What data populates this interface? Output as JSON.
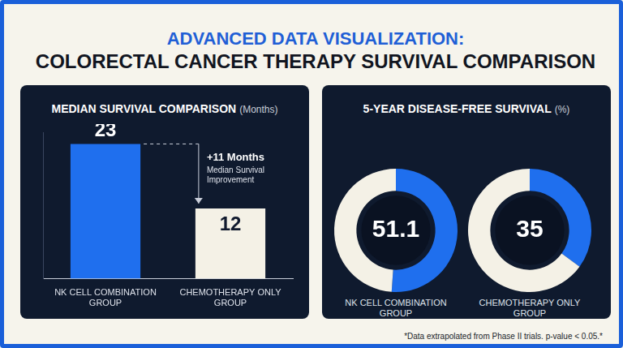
{
  "header": {
    "title": "ADVANCED DATA VISUALIZATION:",
    "subtitle": "COLORECTAL CANCER THERAPY SURVIVAL COMPARISON"
  },
  "chart_data": [
    {
      "type": "bar",
      "title": "MEDIAN SURVIVAL COMPARISON",
      "subtitle": "(Months)",
      "categories": [
        "NK CELL COMBINATION GROUP",
        "CHEMOTHERAPY ONLY GROUP"
      ],
      "values": [
        23,
        12
      ],
      "colors": [
        "#1f6fee",
        "#f4f1e6"
      ],
      "ylim": [
        0,
        25
      ],
      "tick_labels": "x",
      "grid": false,
      "data_labels": true,
      "annotations": [
        "+11 Months",
        "Median Survival Improvement"
      ]
    },
    {
      "type": "doughnut",
      "title": "5-YEAR DISEASE-FREE SURVIVAL",
      "subtitle": "(%)",
      "categories": [
        "NK CELL COMBINATION GROUP",
        "CHEMOTHERAPY ONLY GROUP"
      ],
      "values": [
        51.1,
        35
      ],
      "color": "#1f6fee",
      "ylim": [
        0,
        100
      ],
      "data_labels": true
    }
  ],
  "footnote": "*Data extrapolated from Phase II trials. p-value < 0.05.*"
}
